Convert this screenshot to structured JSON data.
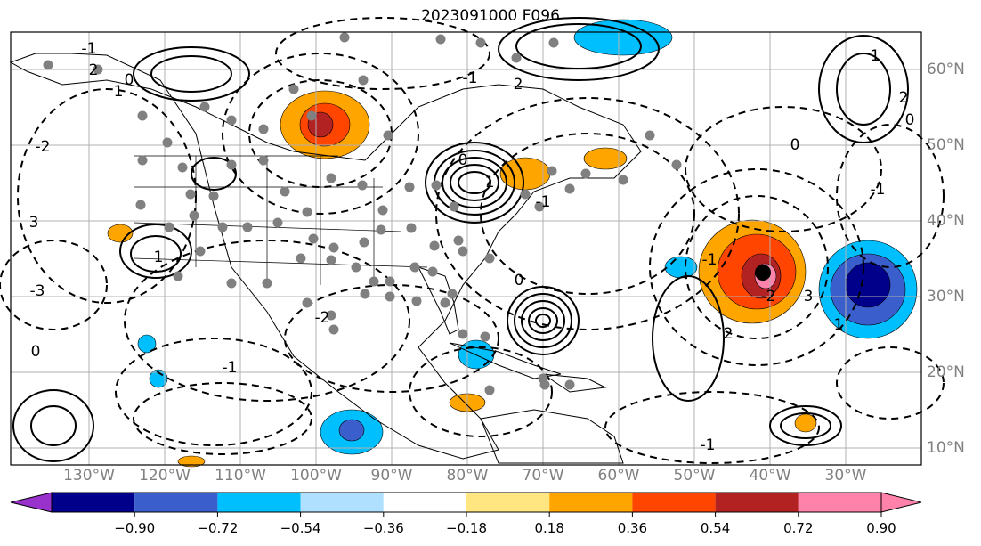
{
  "title": "2023091000 F096",
  "map": {
    "lon_labels": [
      "130°W",
      "120°W",
      "110°W",
      "100°W",
      "90°W",
      "80°W",
      "70°W",
      "60°W",
      "50°W",
      "40°W",
      "30°W"
    ],
    "lat_labels": [
      "60°N",
      "50°N",
      "40°N",
      "30°N",
      "20°N",
      "10°N"
    ],
    "contour_labels": [
      "2",
      "1",
      "0",
      "-1",
      "-2",
      "3",
      "-3",
      "0",
      "-1",
      "1",
      "-2",
      "2",
      "-1",
      "0",
      "1",
      "-1",
      "0",
      "-1",
      "2",
      "-2",
      "3",
      "1",
      "0",
      "-1",
      "2",
      "0",
      "1",
      "-1"
    ],
    "colors": {
      "land_outline": "#000000",
      "stations": "#808080",
      "grid": "#b0b0b0",
      "marker": "#000000"
    }
  },
  "colorbar": {
    "levels": [
      "−0.90",
      "−0.72",
      "−0.54",
      "−0.36",
      "−0.18",
      "0.18",
      "0.36",
      "0.54",
      "0.72",
      "0.90"
    ],
    "colors": [
      "#9932cc",
      "#00008b",
      "#3a5fcd",
      "#00bfff",
      "#b0e0ff",
      "#ffffff",
      "#ffe680",
      "#ffa500",
      "#ff4500",
      "#b22222",
      "#ff82ab"
    ]
  }
}
